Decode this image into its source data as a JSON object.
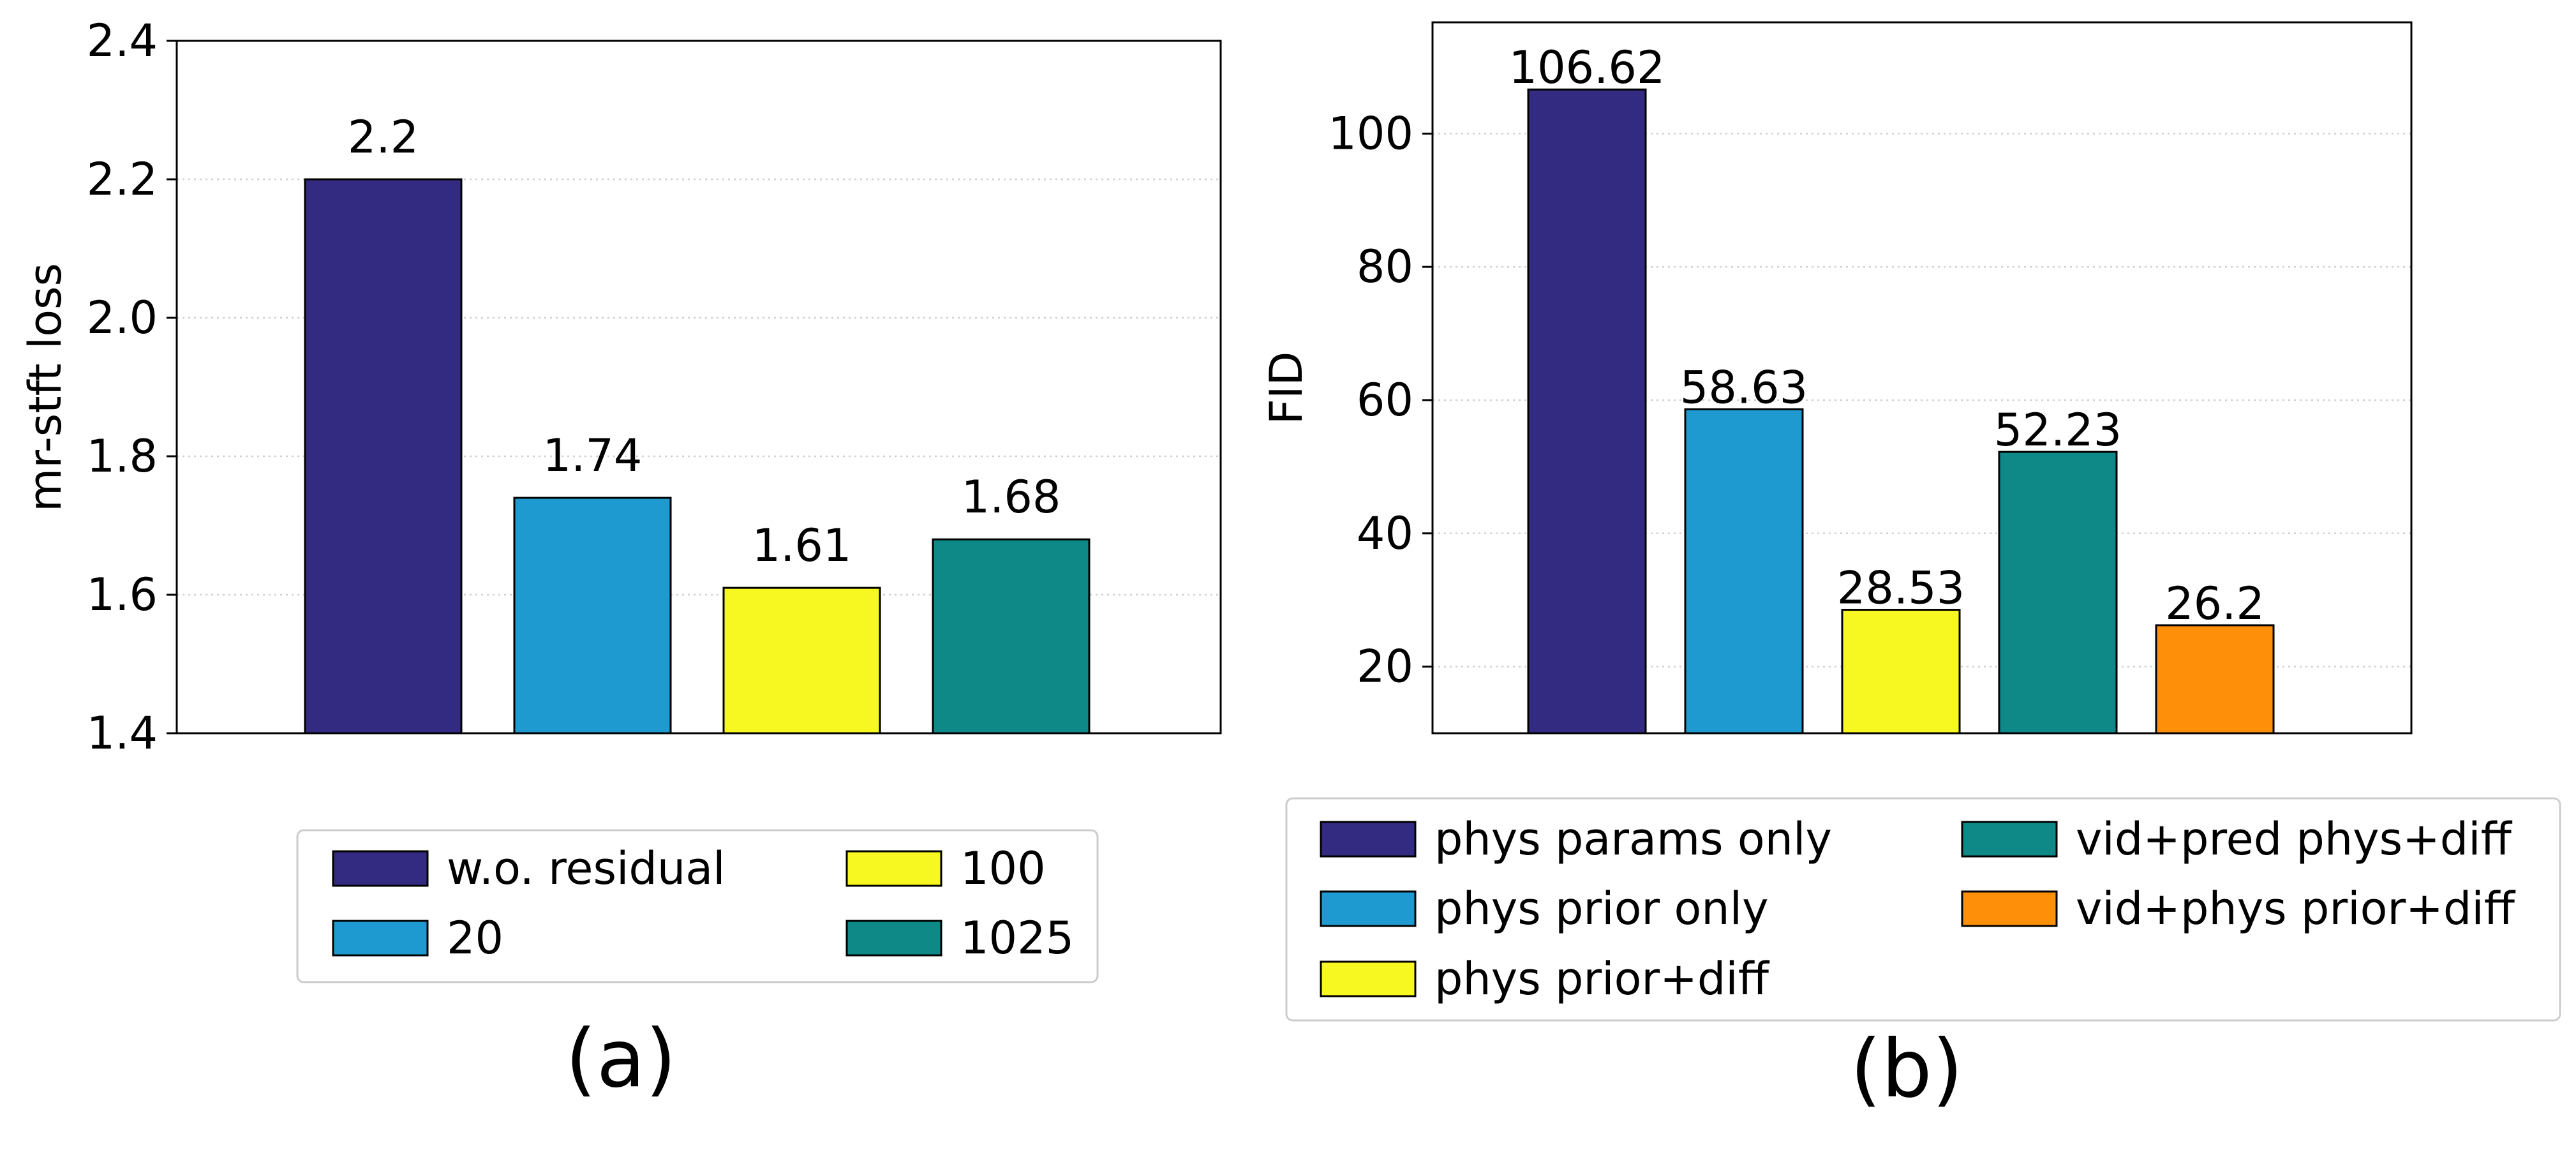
{
  "chart_data": [
    {
      "type": "bar",
      "panel_label": "(a)",
      "ylabel": "mr-stft loss",
      "ylim": [
        1.4,
        2.4
      ],
      "yticks": [
        1.4,
        1.6,
        1.8,
        2.0,
        2.2,
        2.4
      ],
      "ytick_labels": [
        "1.4",
        "1.6",
        "1.8",
        "2.0",
        "2.2",
        "2.4"
      ],
      "grid": "horizontal dotted",
      "legend_position": "bottom",
      "series": [
        {
          "name": "w.o. residual",
          "value": 2.2,
          "label": "2.2",
          "color": "#332a82"
        },
        {
          "name": "20",
          "value": 1.74,
          "label": "1.74",
          "color": "#1f9ad0"
        },
        {
          "name": "100",
          "value": 1.61,
          "label": "1.61",
          "color": "#f7f721"
        },
        {
          "name": "1025",
          "value": 1.68,
          "label": "1.68",
          "color": "#0e8987"
        }
      ]
    },
    {
      "type": "bar",
      "panel_label": "(b)",
      "ylabel": "FID",
      "ylim": [
        10,
        116.7
      ],
      "yticks": [
        20,
        40,
        60,
        80,
        100
      ],
      "ytick_labels": [
        "20",
        "40",
        "60",
        "80",
        "100"
      ],
      "grid": "horizontal dotted",
      "legend_position": "bottom",
      "series": [
        {
          "name": "phys params only",
          "value": 106.62,
          "label": "106.62",
          "color": "#332a82"
        },
        {
          "name": "phys prior only",
          "value": 58.63,
          "label": "58.63",
          "color": "#1f9ad0"
        },
        {
          "name": "phys prior+diff",
          "value": 28.53,
          "label": "28.53",
          "color": "#f7f721"
        },
        {
          "name": "vid+pred phys+diff",
          "value": 52.23,
          "label": "52.23",
          "color": "#0e8987"
        },
        {
          "name": "vid+phys prior+diff",
          "value": 26.2,
          "label": "26.2",
          "color": "#fe8f09"
        }
      ]
    }
  ]
}
